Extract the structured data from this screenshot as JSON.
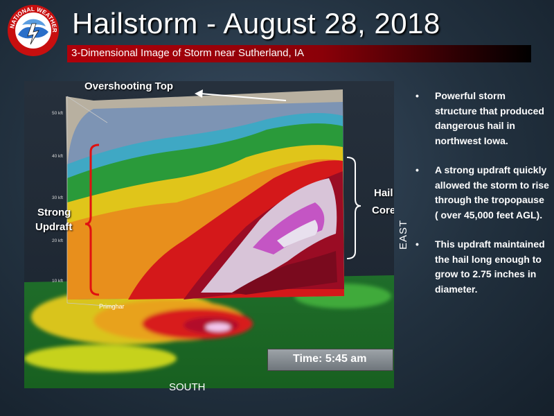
{
  "header": {
    "title": "Hailstorm - August 28, 2018",
    "subtitle": "3-Dimensional Image of Storm near Sutherland, IA"
  },
  "logo": {
    "text": "NATIONAL WEATHER SERVICE",
    "icon": "nws-logo-icon"
  },
  "scene": {
    "labels": {
      "overshooting_top": "Overshooting Top",
      "strong_updraft_line1": "Strong",
      "strong_updraft_line2": "Updraft",
      "hail_core_line1": "Hail",
      "hail_core_line2": "Core",
      "east": "EAST",
      "south": "SOUTH",
      "town": "Primghar"
    },
    "altitude_ticks": [
      "50 kft",
      "40 kft",
      "30 kft",
      "20 kft",
      "10 kft"
    ],
    "time_label": "Time: 5:45 am"
  },
  "bullets": [
    "Powerful storm structure that produced dangerous hail in northwest Iowa.",
    "A strong updraft quickly allowed the storm to rise through the tropopause  ( over 45,000 feet AGL).",
    "This updraft maintained the hail long enough to grow to 2.75 inches in diameter."
  ],
  "colors": {
    "accent_bar": "#b0000a",
    "background": "#22313f"
  }
}
